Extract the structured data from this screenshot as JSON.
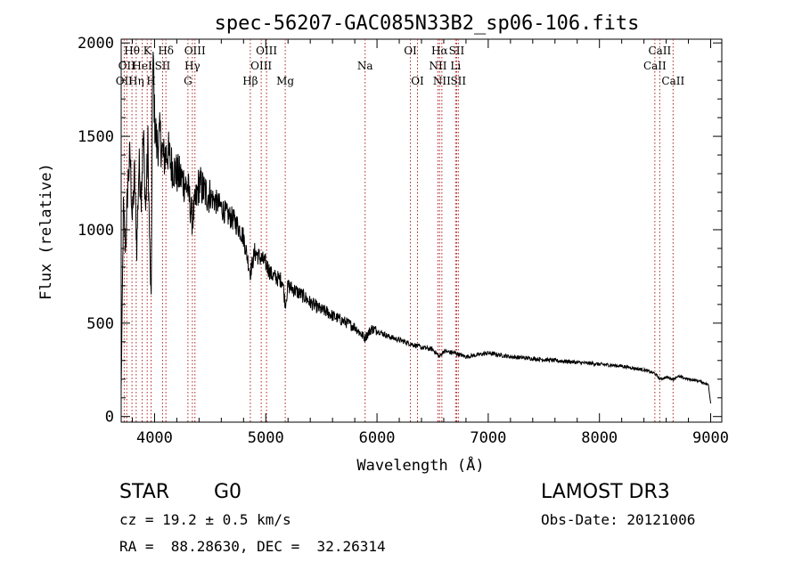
{
  "chart_data": {
    "type": "line",
    "title": "spec-56207-GAC085N33B2_sp06-106.fits",
    "xlabel": "Wavelength (Å)",
    "ylabel": "Flux (relative)",
    "xlim": [
      3700,
      9100
    ],
    "ylim": [
      -30,
      2020
    ],
    "xticks": [
      4000,
      5000,
      6000,
      7000,
      8000,
      9000
    ],
    "yticks": [
      0,
      500,
      1000,
      1500,
      2000
    ],
    "series": [
      {
        "name": "spectrum",
        "x": [
          3700,
          3720,
          3740,
          3760,
          3780,
          3800,
          3820,
          3840,
          3860,
          3880,
          3900,
          3920,
          3940,
          3960,
          3970,
          3980,
          3990,
          4000,
          4020,
          4050,
          4080,
          4100,
          4120,
          4150,
          4200,
          4250,
          4300,
          4340,
          4400,
          4450,
          4500,
          4550,
          4600,
          4650,
          4700,
          4750,
          4800,
          4861,
          4900,
          4950,
          5000,
          5050,
          5100,
          5150,
          5175,
          5200,
          5250,
          5300,
          5350,
          5400,
          5450,
          5500,
          5550,
          5600,
          5700,
          5800,
          5890,
          5950,
          6000,
          6100,
          6200,
          6300,
          6400,
          6500,
          6563,
          6600,
          6700,
          6800,
          6900,
          7000,
          7200,
          7400,
          7600,
          7800,
          8000,
          8200,
          8400,
          8500,
          8542,
          8600,
          8662,
          8700,
          8800,
          8900,
          8980,
          9000
        ],
        "values": [
          150,
          1100,
          900,
          1250,
          1400,
          1050,
          1300,
          900,
          1350,
          1200,
          1500,
          1100,
          1450,
          800,
          600,
          1700,
          1900,
          1600,
          1450,
          1500,
          1380,
          1400,
          1420,
          1350,
          1300,
          1270,
          1220,
          1050,
          1250,
          1200,
          1180,
          1150,
          1120,
          1080,
          1060,
          1020,
          960,
          770,
          880,
          850,
          820,
          760,
          740,
          730,
          600,
          700,
          680,
          660,
          640,
          610,
          590,
          570,
          560,
          540,
          510,
          480,
          420,
          470,
          460,
          430,
          410,
          390,
          370,
          360,
          320,
          350,
          340,
          320,
          330,
          340,
          320,
          310,
          300,
          290,
          280,
          270,
          250,
          230,
          200,
          210,
          200,
          215,
          200,
          190,
          170,
          70
        ]
      }
    ],
    "lines": [
      {
        "wl": 3727,
        "label": "OII",
        "row": 2
      },
      {
        "wl": 3750,
        "label": "OII",
        "row": 1
      },
      {
        "wl": 3797,
        "label": "Hθ",
        "row": 0
      },
      {
        "wl": 3835,
        "label": "Hη",
        "row": 2
      },
      {
        "wl": 3889,
        "label": "HeI",
        "row": 1
      },
      {
        "wl": 3934,
        "label": "K",
        "row": 0
      },
      {
        "wl": 3969,
        "label": "H",
        "row": 2
      },
      {
        "wl": 4072,
        "label": "SII",
        "row": 1
      },
      {
        "wl": 4102,
        "label": "Hδ",
        "row": 0
      },
      {
        "wl": 4300,
        "label": "G",
        "row": 2
      },
      {
        "wl": 4340,
        "label": "Hγ",
        "row": 1
      },
      {
        "wl": 4363,
        "label": "OIII",
        "row": 0
      },
      {
        "wl": 4861,
        "label": "Hβ",
        "row": 2
      },
      {
        "wl": 4959,
        "label": "OIII",
        "row": 1
      },
      {
        "wl": 5007,
        "label": "OIII",
        "row": 0
      },
      {
        "wl": 5175,
        "label": "Mg",
        "row": 2
      },
      {
        "wl": 5893,
        "label": "Na",
        "row": 1
      },
      {
        "wl": 6300,
        "label": "OI",
        "row": 0
      },
      {
        "wl": 6364,
        "label": "OI",
        "row": 2
      },
      {
        "wl": 6548,
        "label": "NII",
        "row": 1
      },
      {
        "wl": 6563,
        "label": "Hα",
        "row": 0
      },
      {
        "wl": 6583,
        "label": "NII",
        "row": 2
      },
      {
        "wl": 6707,
        "label": "Li",
        "row": 1
      },
      {
        "wl": 6716,
        "label": "SII",
        "row": 0
      },
      {
        "wl": 6731,
        "label": "SII",
        "row": 2
      },
      {
        "wl": 8498,
        "label": "CaII",
        "row": 1
      },
      {
        "wl": 8542,
        "label": "CaII",
        "row": 0
      },
      {
        "wl": 8662,
        "label": "CaII",
        "row": 2
      }
    ]
  },
  "footer": {
    "class": "STAR",
    "subclass": "G0",
    "survey": "LAMOST DR3",
    "cz": "cz = 19.2 ± 0.5 km/s",
    "obs_date": "Obs-Date: 20121006",
    "coords": "RA =  88.28630, DEC =  32.26314"
  }
}
